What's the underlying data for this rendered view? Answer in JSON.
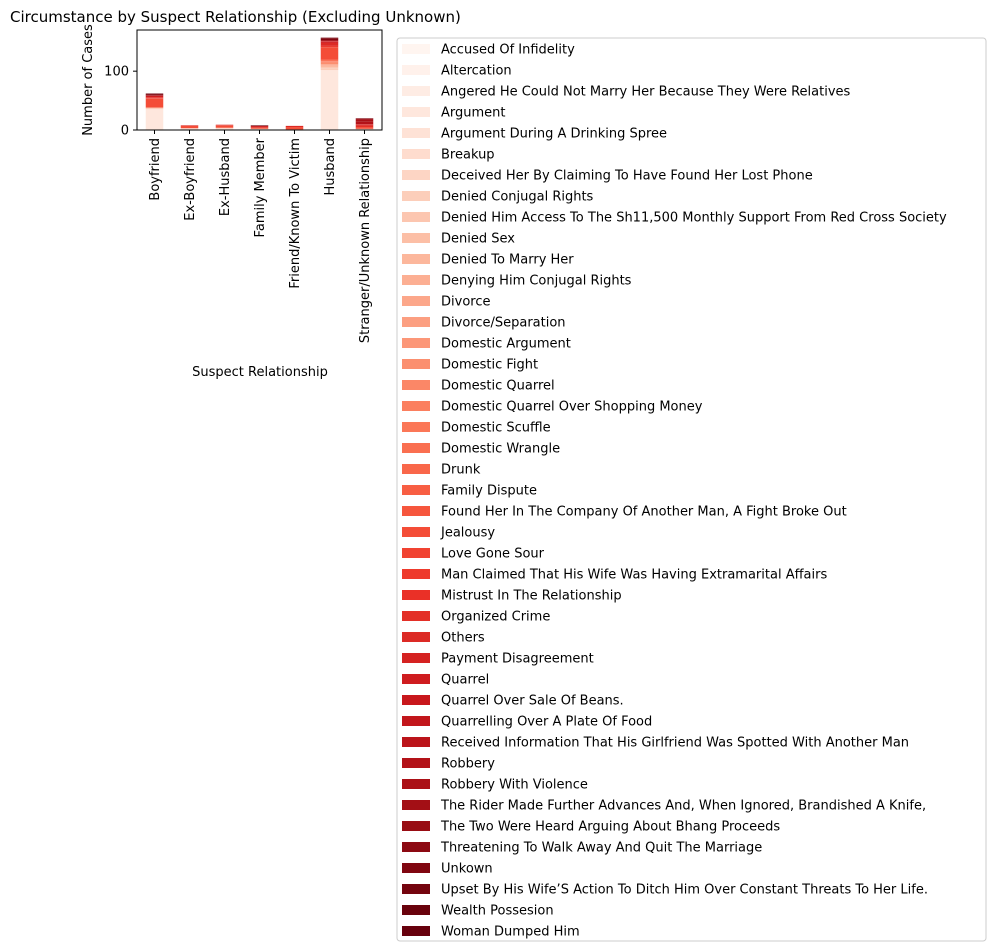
{
  "chart_data": {
    "type": "bar",
    "stacked": true,
    "title": "Circumstance by Suspect Relationship (Excluding Unknown)",
    "xlabel": "Suspect Relationship",
    "ylabel": "Number of Cases",
    "ylim": [
      0,
      170
    ],
    "yticks": [
      0,
      100
    ],
    "categories": [
      "Boyfriend",
      "Ex-Boyfriend",
      "Ex-Husband",
      "Family Member",
      "Friend/Known To Victim",
      "Husband",
      "Stranger/Unknown Relationship"
    ],
    "legend": {
      "position": "outside-right"
    },
    "series": [
      {
        "name": "Accused Of Infidelity",
        "color": "#fff5f0",
        "values": [
          0,
          0,
          0,
          0,
          0,
          0,
          0
        ]
      },
      {
        "name": "Altercation",
        "color": "#fff1eb",
        "values": [
          0,
          0,
          0,
          0,
          0,
          1,
          0
        ]
      },
      {
        "name": "Angered He Could Not Marry Her Because They Were Relatives",
        "color": "#feece4",
        "values": [
          0,
          0,
          0,
          1,
          0,
          0,
          0
        ]
      },
      {
        "name": "Argument",
        "color": "#fee7dd",
        "values": [
          35,
          3,
          3,
          1,
          1,
          100,
          1
        ]
      },
      {
        "name": "Argument During A Drinking Spree",
        "color": "#fee2d6",
        "values": [
          0,
          0,
          0,
          0,
          0,
          1,
          0
        ]
      },
      {
        "name": "Breakup",
        "color": "#fedcce",
        "values": [
          1,
          0,
          0,
          0,
          0,
          0,
          0
        ]
      },
      {
        "name": "Deceived Her By Claiming To Have Found Her Lost Phone",
        "color": "#fdd5c4",
        "values": [
          0,
          0,
          0,
          0,
          0,
          0,
          1
        ]
      },
      {
        "name": "Denied Conjugal Rights",
        "color": "#fcceba",
        "values": [
          0,
          0,
          0,
          0,
          0,
          3,
          0
        ]
      },
      {
        "name": "Denied Him Access To The Sh11,500 Monthly Support From Red Cross Society",
        "color": "#fcc6b0",
        "values": [
          0,
          0,
          0,
          0,
          0,
          1,
          0
        ]
      },
      {
        "name": "Denied Sex",
        "color": "#fcbfa6",
        "values": [
          1,
          0,
          0,
          0,
          0,
          2,
          0
        ]
      },
      {
        "name": "Denied To Marry Her",
        "color": "#fcb79c",
        "values": [
          1,
          0,
          0,
          0,
          0,
          0,
          0
        ]
      },
      {
        "name": "Denying Him Conjugal Rights",
        "color": "#fcaf93",
        "values": [
          0,
          0,
          0,
          0,
          0,
          1,
          0
        ]
      },
      {
        "name": "Divorce",
        "color": "#fca78a",
        "values": [
          0,
          0,
          0,
          0,
          0,
          1,
          0
        ]
      },
      {
        "name": "Divorce/Separation",
        "color": "#fc9f81",
        "values": [
          0,
          0,
          1,
          0,
          0,
          1,
          0
        ]
      },
      {
        "name": "Domestic Argument",
        "color": "#fc9778",
        "values": [
          0,
          0,
          0,
          0,
          0,
          1,
          0
        ]
      },
      {
        "name": "Domestic Fight",
        "color": "#fb8f6f",
        "values": [
          0,
          0,
          0,
          0,
          0,
          1,
          0
        ]
      },
      {
        "name": "Domestic Quarrel",
        "color": "#fb8767",
        "values": [
          0,
          0,
          0,
          0,
          0,
          2,
          0
        ]
      },
      {
        "name": "Domestic Quarrel Over Shopping Money",
        "color": "#fb7f5f",
        "values": [
          0,
          0,
          0,
          0,
          0,
          1,
          0
        ]
      },
      {
        "name": "Domestic Scuffle",
        "color": "#fb7757",
        "values": [
          0,
          0,
          0,
          0,
          0,
          1,
          0
        ]
      },
      {
        "name": "Domestic Wrangle",
        "color": "#fa6f50",
        "values": [
          0,
          0,
          0,
          0,
          0,
          1,
          0
        ]
      },
      {
        "name": "Drunk",
        "color": "#f9674a",
        "values": [
          0,
          0,
          0,
          0,
          0,
          1,
          0
        ]
      },
      {
        "name": "Family Dispute",
        "color": "#f85e43",
        "values": [
          0,
          0,
          0,
          2,
          0,
          1,
          0
        ]
      },
      {
        "name": "Found Her In The Company Of Another Man, A Fight Broke Out",
        "color": "#f6563d",
        "values": [
          1,
          0,
          0,
          0,
          0,
          0,
          0
        ]
      },
      {
        "name": "Jealousy",
        "color": "#f44d37",
        "values": [
          14,
          4,
          3,
          0,
          4,
          20,
          3
        ]
      },
      {
        "name": "Love Gone Sour",
        "color": "#f14331",
        "values": [
          1,
          0,
          1,
          0,
          0,
          1,
          0
        ]
      },
      {
        "name": "Man Claimed That His Wife Was Having Extramarital Affairs",
        "color": "#ee3a2c",
        "values": [
          0,
          0,
          0,
          0,
          0,
          1,
          0
        ]
      },
      {
        "name": "Mistrust In The Relationship",
        "color": "#ea3027",
        "values": [
          1,
          0,
          0,
          0,
          0,
          1,
          0
        ]
      },
      {
        "name": "Organized Crime",
        "color": "#e32f27",
        "values": [
          0,
          0,
          0,
          0,
          0,
          0,
          2
        ]
      },
      {
        "name": "Others",
        "color": "#dc2a25",
        "values": [
          1,
          1,
          1,
          2,
          2,
          5,
          2
        ]
      },
      {
        "name": "Payment Disagreement",
        "color": "#d52221",
        "values": [
          0,
          0,
          0,
          0,
          0,
          0,
          1
        ]
      },
      {
        "name": "Quarrel",
        "color": "#cf1c1f",
        "values": [
          2,
          0,
          0,
          0,
          0,
          2,
          0
        ]
      },
      {
        "name": "Quarrel Over Sale Of Beans.",
        "color": "#c8171c",
        "values": [
          0,
          0,
          0,
          0,
          0,
          1,
          0
        ]
      },
      {
        "name": "Quarrelling Over A Plate Of Food",
        "color": "#c2161b",
        "values": [
          0,
          0,
          0,
          0,
          0,
          1,
          0
        ]
      },
      {
        "name": "Received Information That His Girlfriend Was Spotted With Another Man",
        "color": "#bb141a",
        "values": [
          1,
          0,
          0,
          0,
          0,
          0,
          0
        ]
      },
      {
        "name": "Robbery",
        "color": "#b31218",
        "values": [
          0,
          0,
          0,
          1,
          0,
          0,
          4
        ]
      },
      {
        "name": "Robbery With Violence",
        "color": "#ab1016",
        "values": [
          0,
          0,
          0,
          0,
          0,
          0,
          3
        ]
      },
      {
        "name": "The Rider Made Further Advances And, When Ignored, Brandished A Knife,",
        "color": "#a30f15",
        "values": [
          0,
          0,
          0,
          0,
          0,
          0,
          1
        ]
      },
      {
        "name": "The Two Were Heard Arguing About Bhang Proceeds",
        "color": "#980c13",
        "values": [
          0,
          0,
          0,
          0,
          0,
          0,
          1
        ]
      },
      {
        "name": "Threatening To Walk Away And Quit The Marriage",
        "color": "#8c0912",
        "values": [
          0,
          0,
          0,
          0,
          0,
          1,
          0
        ]
      },
      {
        "name": "Unkown",
        "color": "#800610",
        "values": [
          2,
          0,
          0,
          0,
          0,
          3,
          1
        ]
      },
      {
        "name": "Upset By His Wife’S Action To Ditch Him Over Constant Threats To Her Life.",
        "color": "#74040e",
        "values": [
          0,
          0,
          0,
          0,
          0,
          1,
          0
        ]
      },
      {
        "name": "Wealth Possesion",
        "color": "#69020c",
        "values": [
          0,
          0,
          0,
          1,
          0,
          0,
          0
        ]
      },
      {
        "name": "Woman Dumped Him",
        "color": "#67000d",
        "values": [
          1,
          0,
          0,
          0,
          0,
          0,
          0
        ]
      }
    ]
  }
}
